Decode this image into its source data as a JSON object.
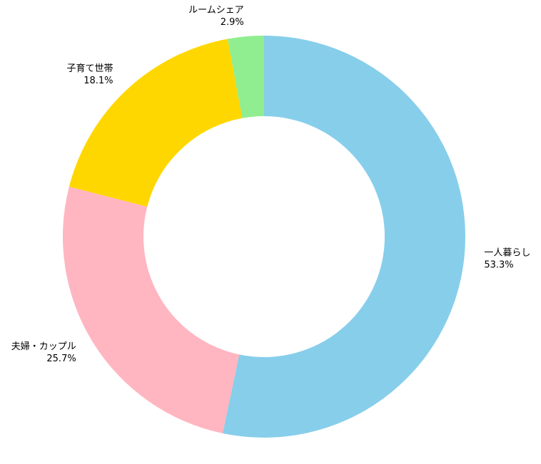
{
  "chart_data": {
    "type": "donut",
    "categories": [
      "一人暮らし",
      "夫婦・カップル",
      "子育て世帯",
      "ルームシェア"
    ],
    "values": [
      53.3,
      25.7,
      18.1,
      2.9
    ],
    "value_labels": [
      "53.3%",
      "25.7%",
      "18.1%",
      "2.9%"
    ],
    "colors": [
      "#87ceeb",
      "#ffb6c1",
      "#ffd700",
      "#90ee90"
    ]
  }
}
